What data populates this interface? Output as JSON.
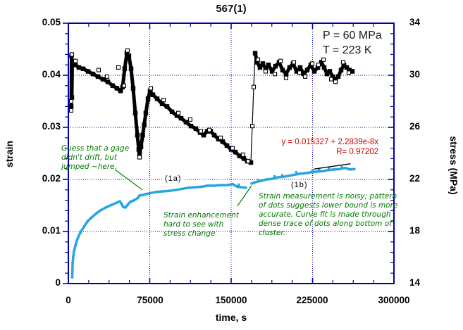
{
  "title": "567(1)",
  "conditions": {
    "text": "P = 60 MPa\nT = 223 K"
  },
  "fit": {
    "text": "y = 0.015327 + 2.2839e-8x\nR= 0.97202"
  },
  "annotations": {
    "gage": "Guess that a gage\ndidn't drift, but\njumped ~here.",
    "region_1a": "(1a)",
    "region_1b": "(1b)",
    "enhancement": "Strain enhancement\nhard to see with\nstress change",
    "noisy": "Strain measurement is noisy; pattern\nof dots suggests lower bound is more\naccurate.  Curve fit is made through\ndense trace of dots along bottom of\ncluster."
  },
  "axes": {
    "x": {
      "label": "time, s",
      "tick_labels": [
        "0",
        "75000",
        "150000",
        "225000",
        "300000"
      ]
    },
    "y_left": {
      "label": "strain",
      "tick_labels": [
        "0.05",
        "0.04",
        "0.03",
        "0.02",
        "0.01",
        "0"
      ]
    },
    "y_right": {
      "label": "stress (MPa)",
      "tick_labels": [
        "34",
        "30",
        "26",
        "22",
        "18",
        "14"
      ]
    }
  },
  "colors": {
    "frame": "#0000aa",
    "grid": "#0000aa",
    "stress_series": "#000000",
    "strain_series": "#29a5df",
    "annotation_green": "#007a00",
    "fit_text_red": "#cc0000",
    "background": "#ffffff"
  },
  "chart_data": {
    "type": "scatter",
    "title": "567(1)",
    "xlabel": "time, s",
    "ylabel_left": "strain",
    "ylabel_right": "stress (MPa)",
    "x_range": [
      0,
      300000
    ],
    "y_left_range": [
      0,
      0.05
    ],
    "y_right_range": [
      14,
      34
    ],
    "x_major_ticks": [
      0,
      75000,
      150000,
      225000,
      300000
    ],
    "y_left_major_ticks": [
      0,
      0.01,
      0.02,
      0.03,
      0.04,
      0.05
    ],
    "y_right_major_ticks": [
      14,
      18,
      22,
      26,
      30,
      34
    ],
    "x_minor_divisions": 4,
    "y_minor_divisions": 5,
    "grid_x": [
      75000,
      150000,
      225000
    ],
    "grid_y_left": [
      0.01,
      0.02,
      0.03,
      0.04
    ],
    "series": [
      {
        "name": "stress-loading-and-decline",
        "axis": "right",
        "marker": "open-square",
        "style": "band",
        "color": "#000000",
        "points": [
          [
            2600,
            27.6
          ],
          [
            2900,
            31.5
          ],
          [
            3200,
            28.3
          ],
          [
            3600,
            30.9
          ],
          [
            6500,
            30.8
          ],
          [
            9700,
            30.6
          ],
          [
            13600,
            30.5
          ],
          [
            18200,
            30.3
          ],
          [
            22700,
            30.1
          ],
          [
            27300,
            29.9
          ],
          [
            31800,
            29.7
          ],
          [
            36400,
            29.5
          ],
          [
            40900,
            29.2
          ],
          [
            44800,
            29.0
          ],
          [
            48100,
            28.8
          ],
          [
            50000,
            29.1
          ],
          [
            51900,
            30.5
          ],
          [
            53900,
            31.7
          ],
          [
            55800,
            31.5
          ],
          [
            57800,
            30.5
          ],
          [
            59700,
            29.0
          ],
          [
            61700,
            27.1
          ],
          [
            63600,
            25.4
          ],
          [
            64900,
            24.3
          ],
          [
            65600,
            24.0
          ],
          [
            66900,
            24.5
          ],
          [
            68500,
            25.4
          ],
          [
            69900,
            26.2
          ],
          [
            71400,
            27.1
          ],
          [
            73400,
            28.2
          ],
          [
            75300,
            28.8
          ],
          [
            77900,
            28.5
          ],
          [
            81800,
            28.2
          ],
          [
            86400,
            27.8
          ],
          [
            90900,
            27.6
          ],
          [
            95500,
            27.2
          ],
          [
            100000,
            26.9
          ],
          [
            103900,
            26.7
          ],
          [
            108400,
            26.4
          ],
          [
            113000,
            26.1
          ],
          [
            117500,
            25.9
          ],
          [
            121400,
            25.6
          ],
          [
            124700,
            25.4
          ],
          [
            127900,
            25.7
          ],
          [
            131200,
            25.7
          ],
          [
            134400,
            25.4
          ],
          [
            138300,
            25.1
          ],
          [
            142200,
            24.9
          ],
          [
            146100,
            24.6
          ],
          [
            150000,
            24.3
          ],
          [
            153900,
            24.1
          ],
          [
            157800,
            23.8
          ],
          [
            161700,
            23.6
          ],
          [
            164900,
            23.4
          ],
          [
            168200,
            23.3
          ]
        ]
      },
      {
        "name": "stress-step-jump",
        "axis": "right",
        "marker": "open-square",
        "style": "thin",
        "color": "#000000",
        "points": [
          [
            168200,
            23.3
          ],
          [
            169500,
            26.1
          ],
          [
            170800,
            29.1
          ],
          [
            172100,
            31.7
          ]
        ]
      },
      {
        "name": "stress-plateau",
        "axis": "right",
        "marker": "open-square",
        "style": "band",
        "color": "#000000",
        "points": [
          [
            172100,
            31.7
          ],
          [
            174000,
            31.0
          ],
          [
            176600,
            30.6
          ],
          [
            179200,
            30.9
          ],
          [
            181800,
            30.5
          ],
          [
            184400,
            30.8
          ],
          [
            187700,
            30.3
          ],
          [
            190900,
            30.7
          ],
          [
            194200,
            31.0
          ],
          [
            197400,
            30.4
          ],
          [
            200600,
            30.1
          ],
          [
            203900,
            30.6
          ],
          [
            207100,
            30.9
          ],
          [
            210400,
            30.3
          ],
          [
            213600,
            30.6
          ],
          [
            216900,
            30.1
          ],
          [
            220100,
            30.4
          ],
          [
            223400,
            30.8
          ],
          [
            226600,
            30.3
          ],
          [
            229900,
            30.6
          ],
          [
            233100,
            31.0
          ],
          [
            235700,
            30.6
          ],
          [
            238300,
            30.1
          ],
          [
            240900,
            30.3
          ],
          [
            243500,
            29.9
          ],
          [
            246100,
            29.7
          ],
          [
            248700,
            29.9
          ],
          [
            251300,
            30.4
          ],
          [
            253900,
            30.8
          ],
          [
            256500,
            30.6
          ],
          [
            259100,
            30.4
          ],
          [
            261700,
            30.3
          ]
        ]
      },
      {
        "name": "stress-outlier-squares",
        "axis": "right",
        "marker": "open-square",
        "style": "squares",
        "color": "#000000",
        "points": [
          [
            2600,
            28.0
          ],
          [
            2600,
            27.3
          ],
          [
            3250,
            31.6
          ],
          [
            6500,
            31.1
          ],
          [
            27900,
            30.4
          ],
          [
            35700,
            29.9
          ],
          [
            46100,
            30.6
          ],
          [
            51300,
            29.2
          ],
          [
            54500,
            31.9
          ],
          [
            65600,
            23.7
          ],
          [
            76000,
            29.0
          ],
          [
            87700,
            28.1
          ],
          [
            101300,
            27.1
          ],
          [
            112300,
            26.6
          ],
          [
            122100,
            25.7
          ],
          [
            129900,
            25.8
          ],
          [
            140300,
            25.2
          ],
          [
            151300,
            24.4
          ],
          [
            161000,
            23.9
          ],
          [
            165600,
            23.4
          ],
          [
            169500,
            26.1
          ],
          [
            170800,
            29.1
          ],
          [
            174700,
            31.2
          ],
          [
            181800,
            30.3
          ],
          [
            190300,
            30.1
          ],
          [
            195500,
            31.1
          ],
          [
            200600,
            29.8
          ],
          [
            207800,
            31.0
          ],
          [
            213000,
            30.2
          ],
          [
            218200,
            29.9
          ],
          [
            224700,
            30.9
          ],
          [
            230500,
            30.8
          ],
          [
            235100,
            31.2
          ],
          [
            242200,
            29.7
          ],
          [
            246100,
            29.5
          ],
          [
            253200,
            31.0
          ],
          [
            258400,
            30.2
          ]
        ]
      },
      {
        "name": "strain-creep-segment-1",
        "axis": "left",
        "marker": "dot",
        "style": "dots",
        "color": "#29a5df",
        "points": [
          [
            3600,
            0.0012
          ],
          [
            3900,
            0.0038
          ],
          [
            4500,
            0.0051
          ],
          [
            5200,
            0.0062
          ],
          [
            6500,
            0.0073
          ],
          [
            7800,
            0.0082
          ],
          [
            9700,
            0.0092
          ],
          [
            11700,
            0.01
          ],
          [
            14300,
            0.0109
          ],
          [
            17500,
            0.0119
          ],
          [
            21400,
            0.0127
          ],
          [
            25300,
            0.0134
          ],
          [
            29900,
            0.0141
          ],
          [
            34400,
            0.0146
          ],
          [
            39600,
            0.0151
          ],
          [
            44200,
            0.0155
          ],
          [
            47400,
            0.0158
          ],
          [
            48700,
            0.0154
          ],
          [
            50600,
            0.0147
          ],
          [
            52600,
            0.0146
          ],
          [
            54500,
            0.0151
          ],
          [
            57100,
            0.0157
          ],
          [
            59700,
            0.0159
          ],
          [
            62300,
            0.0162
          ],
          [
            64300,
            0.0165
          ],
          [
            65600,
            0.0169
          ],
          [
            68200,
            0.017
          ],
          [
            72100,
            0.0172
          ],
          [
            76000,
            0.0174
          ],
          [
            81200,
            0.0176
          ],
          [
            87000,
            0.0177
          ],
          [
            92900,
            0.0178
          ],
          [
            99400,
            0.018
          ],
          [
            105200,
            0.0182
          ],
          [
            111000,
            0.0184
          ],
          [
            116900,
            0.0185
          ],
          [
            122700,
            0.0186
          ],
          [
            128600,
            0.0188
          ],
          [
            134400,
            0.0188
          ],
          [
            140300,
            0.0189
          ],
          [
            146100,
            0.0189
          ],
          [
            151300,
            0.0191
          ],
          [
            155800,
            0.0186
          ],
          [
            159700,
            0.0185
          ],
          [
            163600,
            0.0184
          ]
        ]
      },
      {
        "name": "strain-creep-segment-2",
        "axis": "left",
        "marker": "dot",
        "style": "dots",
        "color": "#29a5df",
        "points": [
          [
            168800,
            0.0192
          ],
          [
            172700,
            0.0195
          ],
          [
            177300,
            0.0197
          ],
          [
            182500,
            0.02
          ],
          [
            187700,
            0.0201
          ],
          [
            192900,
            0.0204
          ],
          [
            198100,
            0.0205
          ],
          [
            203200,
            0.0207
          ],
          [
            208400,
            0.0209
          ],
          [
            213600,
            0.0211
          ],
          [
            218800,
            0.0212
          ],
          [
            224000,
            0.0214
          ],
          [
            229200,
            0.0215
          ],
          [
            234400,
            0.0216
          ],
          [
            239600,
            0.0218
          ],
          [
            244800,
            0.0219
          ],
          [
            250000,
            0.022
          ],
          [
            255200,
            0.0222
          ],
          [
            259700,
            0.0219
          ],
          [
            263600,
            0.022
          ]
        ]
      },
      {
        "name": "strain-scatter-dots",
        "axis": "left",
        "marker": "dot",
        "style": "scatter",
        "color": "#29a5df",
        "points": [
          [
            157000,
            0.019
          ],
          [
            175000,
            0.0199
          ],
          [
            190000,
            0.0206
          ],
          [
            197000,
            0.0208
          ],
          [
            210000,
            0.0214
          ],
          [
            225000,
            0.0218
          ],
          [
            231000,
            0.0219
          ],
          [
            240000,
            0.0222
          ],
          [
            252000,
            0.0224
          ]
        ]
      },
      {
        "name": "fit-line",
        "axis": "left",
        "marker": "none",
        "style": "line",
        "color": "#000000",
        "points": [
          [
            226600,
            0.022
          ],
          [
            259700,
            0.023
          ]
        ]
      }
    ],
    "leader_lines": [
      {
        "name": "gage-annotation-leader",
        "axis": "left",
        "from": [
          42900,
          0.0219
        ],
        "to": [
          68200,
          0.018
        ]
      },
      {
        "name": "noisy-annotation-leader",
        "axis": "left",
        "from": [
          155800,
          0.0149
        ],
        "to": [
          168800,
          0.0188
        ]
      }
    ]
  }
}
